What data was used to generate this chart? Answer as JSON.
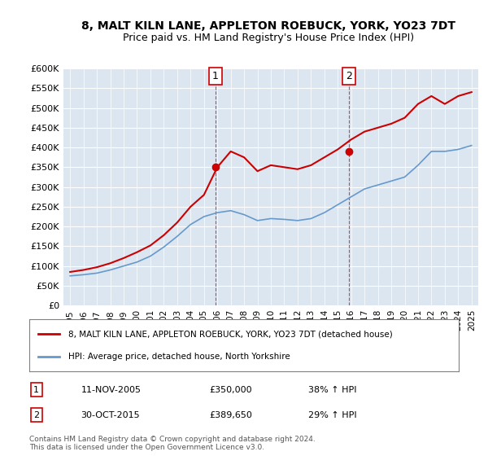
{
  "title": "8, MALT KILN LANE, APPLETON ROEBUCK, YORK, YO23 7DT",
  "subtitle": "Price paid vs. HM Land Registry's House Price Index (HPI)",
  "legend_line1": "8, MALT KILN LANE, APPLETON ROEBUCK, YORK, YO23 7DT (detached house)",
  "legend_line2": "HPI: Average price, detached house, North Yorkshire",
  "footer": "Contains HM Land Registry data © Crown copyright and database right 2024.\nThis data is licensed under the Open Government Licence v3.0.",
  "transaction1_label": "1",
  "transaction1_date": "11-NOV-2005",
  "transaction1_price": "£350,000",
  "transaction1_hpi": "38% ↑ HPI",
  "transaction2_label": "2",
  "transaction2_date": "30-OCT-2015",
  "transaction2_price": "£389,650",
  "transaction2_hpi": "29% ↑ HPI",
  "red_color": "#cc0000",
  "blue_color": "#6699cc",
  "background_color": "#dce6f1",
  "plot_bg_color": "#dce6f1",
  "ylim": [
    0,
    600000
  ],
  "yticks": [
    0,
    50000,
    100000,
    150000,
    200000,
    250000,
    300000,
    350000,
    400000,
    450000,
    500000,
    550000,
    600000
  ],
  "ytick_labels": [
    "£0",
    "£50K",
    "£100K",
    "£150K",
    "£200K",
    "£250K",
    "£300K",
    "£350K",
    "£400K",
    "£450K",
    "£500K",
    "£550K",
    "£600K"
  ],
  "xlim_start": 1994.5,
  "xlim_end": 2025.5,
  "hpi_x": [
    1995,
    1996,
    1997,
    1998,
    1999,
    2000,
    2001,
    2002,
    2003,
    2004,
    2005,
    2006,
    2007,
    2008,
    2009,
    2010,
    2011,
    2012,
    2013,
    2014,
    2015,
    2016,
    2017,
    2018,
    2019,
    2020,
    2021,
    2022,
    2023,
    2024,
    2025
  ],
  "hpi_y": [
    75000,
    78000,
    82000,
    90000,
    100000,
    110000,
    125000,
    148000,
    175000,
    205000,
    225000,
    235000,
    240000,
    230000,
    215000,
    220000,
    218000,
    215000,
    220000,
    235000,
    255000,
    275000,
    295000,
    305000,
    315000,
    325000,
    355000,
    390000,
    390000,
    395000,
    405000
  ],
  "price_x": [
    1995,
    1996,
    1997,
    1998,
    1999,
    2000,
    2001,
    2002,
    2003,
    2004,
    2005,
    2006,
    2007,
    2008,
    2009,
    2010,
    2011,
    2012,
    2013,
    2014,
    2015,
    2016,
    2017,
    2018,
    2019,
    2020,
    2021,
    2022,
    2023,
    2024,
    2025
  ],
  "price_y": [
    85000,
    90000,
    97000,
    107000,
    120000,
    135000,
    152000,
    178000,
    210000,
    250000,
    280000,
    350000,
    390000,
    375000,
    340000,
    355000,
    350000,
    345000,
    355000,
    375000,
    395000,
    420000,
    440000,
    450000,
    460000,
    475000,
    510000,
    530000,
    510000,
    530000,
    540000
  ],
  "transaction1_x": 2005.87,
  "transaction1_y": 350000,
  "transaction2_x": 2015.83,
  "transaction2_y": 389650
}
